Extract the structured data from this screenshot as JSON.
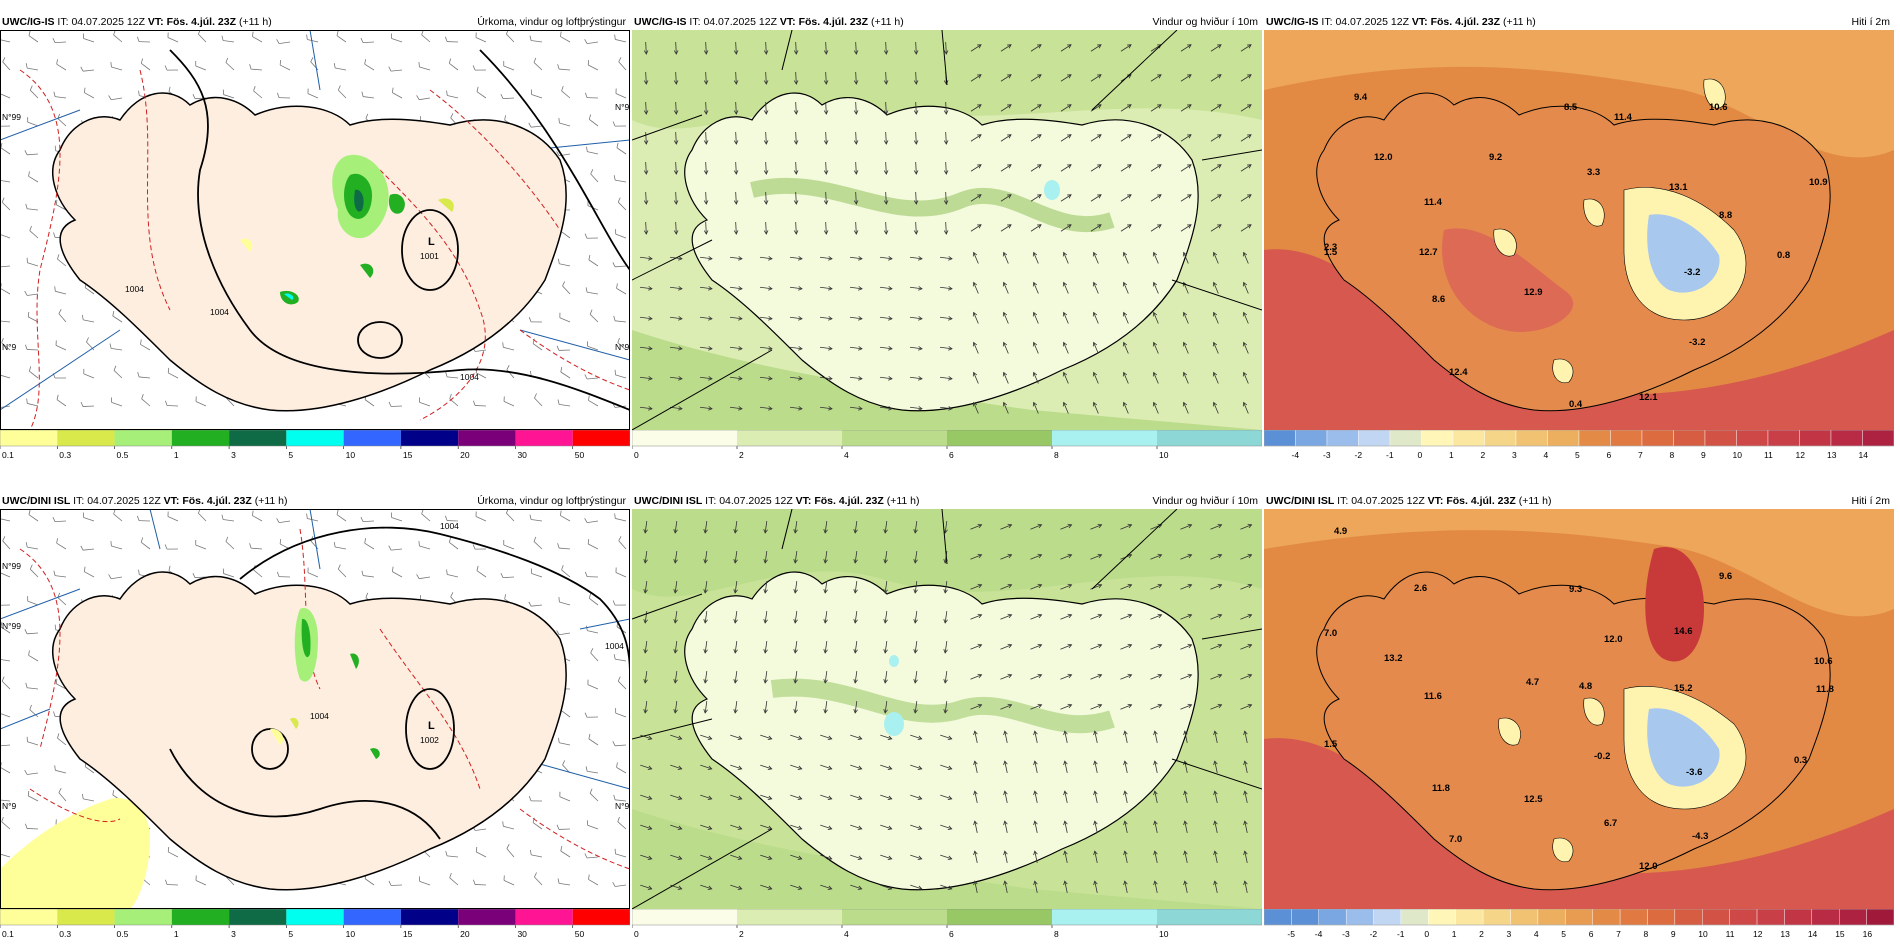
{
  "rows": [
    {
      "id": "igis",
      "panels": [
        {
          "model": "UWC/IG-IS",
          "it_label": "IT:",
          "it": "04.07.2025 12Z",
          "vt_label": "VT:",
          "vt": "Fös. 4.júl. 23Z",
          "lead": "(+11 h)",
          "title": "Úrkoma, vindur og loftþrýstingur",
          "pressure_labels": [
            {
              "text": "L"
            },
            {
              "text": "1001"
            },
            {
              "text": "1004"
            },
            {
              "text": "1004"
            },
            {
              "text": "1004"
            }
          ],
          "lat_labels": [
            "N°99",
            "N°9",
            "N°9",
            "N°9"
          ]
        },
        {
          "model": "UWC/IG-IS",
          "it_label": "IT:",
          "it": "04.07.2025 12Z",
          "vt_label": "VT:",
          "vt": "Fös. 4.júl. 23Z",
          "lead": "(+11 h)",
          "title": "Vindur og hviður í 10m"
        },
        {
          "model": "UWC/IG-IS",
          "it_label": "IT:",
          "it": "04.07.2025 12Z",
          "vt_label": "VT:",
          "vt": "Fös. 4.júl. 23Z",
          "lead": "(+11 h)",
          "title": "Hiti í 2m",
          "temp_labels": [
            "9.4",
            "12.0",
            "11.4",
            "9.2",
            "8.5",
            "11.4",
            "3.3",
            "10.6",
            "13.1",
            "10.9",
            "8.8",
            "2.3",
            "12.7",
            "1.5",
            "-3.2",
            "0.8",
            "8.6",
            "12.9",
            "-3.2",
            "12.4",
            "0.4",
            "12.1"
          ]
        }
      ]
    },
    {
      "id": "dini",
      "panels": [
        {
          "model": "UWC/DINI ISL",
          "it_label": "IT:",
          "it": "04.07.2025 12Z",
          "vt_label": "VT:",
          "vt": "Fös. 4.júl. 23Z",
          "lead": "(+11 h)",
          "title": "Úrkoma, vindur og loftþrýstingur",
          "pressure_labels": [
            {
              "text": "L"
            },
            {
              "text": "1002"
            },
            {
              "text": "1004"
            },
            {
              "text": "1004"
            },
            {
              "text": "1004"
            }
          ],
          "lat_labels": [
            "N°99",
            "N°99",
            "N°9",
            "N°9"
          ]
        },
        {
          "model": "UWC/DINI ISL",
          "it_label": "IT:",
          "it": "04.07.2025 12Z",
          "vt_label": "VT:",
          "vt": "Fös. 4.júl. 23Z",
          "lead": "(+11 h)",
          "title": "Vindur og hviður í 10m"
        },
        {
          "model": "UWC/DINI ISL",
          "it_label": "IT:",
          "it": "04.07.2025 12Z",
          "vt_label": "VT:",
          "vt": "Fös. 4.júl. 23Z",
          "lead": "(+11 h)",
          "title": "Hiti í 2m",
          "temp_labels": [
            "4.9",
            "2.6",
            "9.3",
            "9.6",
            "7.0",
            "13.2",
            "12.0",
            "14.6",
            "10.6",
            "11.6",
            "4.7",
            "4.8",
            "15.2",
            "11.8",
            "1.5",
            "-0.2",
            "0.3",
            "11.8",
            "12.5",
            "-3.6",
            "6.7",
            "7.0",
            "-4.3",
            "12.0"
          ]
        }
      ]
    }
  ],
  "colorbars": {
    "precip": {
      "ticks": [
        "0.1",
        "0.3",
        "0.5",
        "1",
        "3",
        "5",
        "10",
        "15",
        "20",
        "30",
        "50"
      ],
      "colors": [
        "#ffff99",
        "#d9e84a",
        "#a6f07a",
        "#22b022",
        "#0e6b45",
        "#00ffee",
        "#3366ff",
        "#000088",
        "#7a007a",
        "#ff1493",
        "#ff0000"
      ]
    },
    "wind": {
      "ticks": [
        "0",
        "2",
        "4",
        "6",
        "8",
        "10"
      ],
      "colors": [
        "#fbfde8",
        "#dcedb4",
        "#bbdc8b",
        "#98c765",
        "#a9f0f0",
        "#8dd7d7"
      ]
    },
    "temp_igis": {
      "ticks": [
        "-4",
        "-3",
        "-2",
        "-1",
        "0",
        "1",
        "2",
        "3",
        "4",
        "5",
        "6",
        "7",
        "8",
        "9",
        "10",
        "11",
        "12",
        "13",
        "14"
      ]
    },
    "temp_dini": {
      "ticks": [
        "-5",
        "-4",
        "-3",
        "-2",
        "-1",
        "0",
        "1",
        "2",
        "3",
        "4",
        "5",
        "6",
        "7",
        "8",
        "9",
        "10",
        "11",
        "12",
        "13",
        "14",
        "15",
        "16"
      ]
    }
  },
  "colors": {
    "land": "#fdeee0",
    "sea": "#ffffff",
    "isobar": "#000000",
    "temp_contour": "#d02020",
    "meridian": "#1f5fa8",
    "wind_light": "#f4fadc",
    "wind_mid": "#c8e398",
    "temp_warm": "#e28a44",
    "temp_hot": "#d6584e",
    "temp_cold": "#a8c8ee",
    "temp_cool": "#fff3b0"
  }
}
